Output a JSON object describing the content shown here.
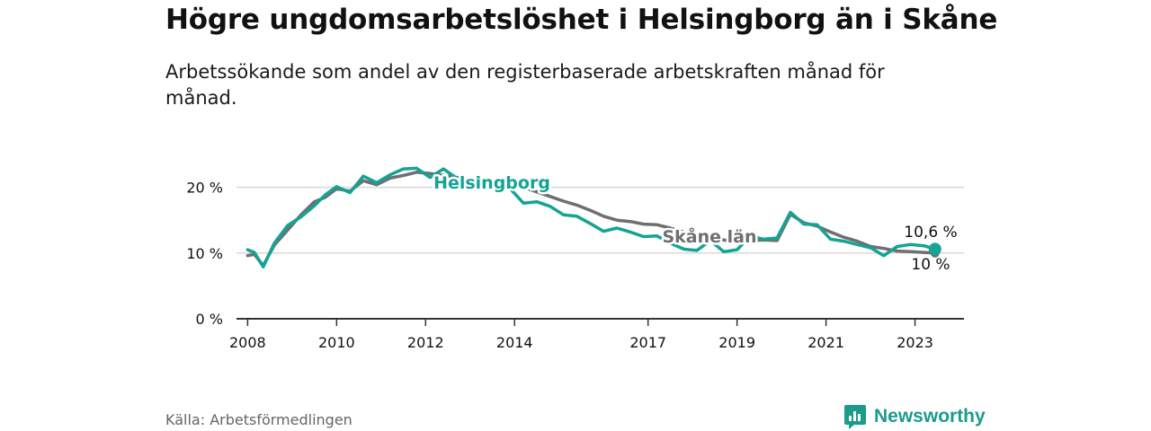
{
  "title": "Högre ungdomsarbetslöshet i Helsingborg än i Skåne",
  "subtitle": "Arbetssökande som andel av den registerbaserade arbetskraften månad för månad.",
  "source": "Källa: Arbetsförmedlingen",
  "brand": {
    "name": "Newsworthy",
    "icon": "newsworthy-logo-icon"
  },
  "colors": {
    "helsingborg": "#14a394",
    "skane": "#6e6e73",
    "grid": "#d9d9d9",
    "axis": "#333333"
  },
  "chart_data": {
    "type": "line",
    "title": "Högre ungdomsarbetslöshet i Helsingborg än i Skåne",
    "xlabel": "",
    "ylabel": "",
    "ylim": [
      0,
      25
    ],
    "xlim": [
      2007.75,
      2024.1
    ],
    "y_ticks": [
      0,
      10,
      20
    ],
    "y_tick_labels": [
      "0 %",
      "10 %",
      "20 %"
    ],
    "x_ticks": [
      2008,
      2010,
      2012,
      2014,
      2017,
      2019,
      2021,
      2023
    ],
    "x_tick_labels": [
      "2008",
      "2010",
      "2012",
      "2014",
      "2017",
      "2019",
      "2021",
      "2023"
    ],
    "series": [
      {
        "name": "Skåne län",
        "label": "Skåne län",
        "end_label": "10 %",
        "x": [
          2008.0,
          2008.15,
          2008.35,
          2008.6,
          2008.9,
          2009.2,
          2009.5,
          2009.75,
          2010.0,
          2010.3,
          2010.6,
          2010.9,
          2011.2,
          2011.5,
          2011.8,
          2012.1,
          2012.4,
          2012.7,
          2013.0,
          2013.3,
          2013.6,
          2013.9,
          2014.2,
          2014.5,
          2014.8,
          2015.1,
          2015.4,
          2015.7,
          2016.0,
          2016.3,
          2016.6,
          2016.9,
          2017.2,
          2017.5,
          2017.8,
          2018.1,
          2018.4,
          2018.7,
          2019.0,
          2019.3,
          2019.6,
          2019.9,
          2020.2,
          2020.5,
          2020.8,
          2021.1,
          2021.4,
          2021.7,
          2022.0,
          2022.3,
          2022.6,
          2022.9,
          2023.2,
          2023.45
        ],
        "values": [
          9.6,
          9.8,
          8.1,
          11.2,
          13.5,
          15.8,
          17.8,
          18.5,
          19.8,
          19.4,
          21.0,
          20.4,
          21.4,
          21.8,
          22.3,
          22.1,
          21.8,
          21.5,
          21.0,
          21.2,
          20.9,
          20.6,
          20.0,
          19.3,
          18.6,
          17.9,
          17.3,
          16.5,
          15.6,
          15.0,
          14.8,
          14.4,
          14.3,
          13.8,
          13.2,
          12.7,
          12.3,
          12.0,
          11.6,
          11.9,
          12.0,
          11.9,
          15.9,
          14.6,
          14.1,
          13.2,
          12.4,
          11.8,
          11.0,
          10.7,
          10.3,
          10.2,
          10.1,
          10.0
        ]
      },
      {
        "name": "Helsingborg",
        "label": "Helsingborg",
        "end_label": "10,6 %",
        "x": [
          2008.0,
          2008.15,
          2008.35,
          2008.6,
          2008.9,
          2009.2,
          2009.5,
          2009.75,
          2010.0,
          2010.3,
          2010.6,
          2010.9,
          2011.2,
          2011.5,
          2011.8,
          2012.1,
          2012.4,
          2012.7,
          2013.0,
          2013.3,
          2013.6,
          2013.9,
          2014.2,
          2014.5,
          2014.8,
          2015.1,
          2015.4,
          2015.7,
          2016.0,
          2016.3,
          2016.6,
          2016.9,
          2017.2,
          2017.5,
          2017.8,
          2018.1,
          2018.4,
          2018.7,
          2019.0,
          2019.3,
          2019.6,
          2019.9,
          2020.2,
          2020.5,
          2020.8,
          2021.1,
          2021.4,
          2021.7,
          2022.0,
          2022.3,
          2022.6,
          2022.9,
          2023.2,
          2023.45
        ],
        "values": [
          10.5,
          10.1,
          7.9,
          11.5,
          14.2,
          15.5,
          17.2,
          18.9,
          20.1,
          19.2,
          21.7,
          20.7,
          21.9,
          22.8,
          22.9,
          21.5,
          22.8,
          21.4,
          21.2,
          20.9,
          20.6,
          19.8,
          17.6,
          17.8,
          17.1,
          15.8,
          15.6,
          14.5,
          13.3,
          13.8,
          13.2,
          12.5,
          12.6,
          11.5,
          10.6,
          10.4,
          11.9,
          10.2,
          10.5,
          12.6,
          12.1,
          12.3,
          16.2,
          14.4,
          14.3,
          12.1,
          11.8,
          11.3,
          10.8,
          9.6,
          11.0,
          11.3,
          11.1,
          10.6
        ]
      }
    ]
  }
}
